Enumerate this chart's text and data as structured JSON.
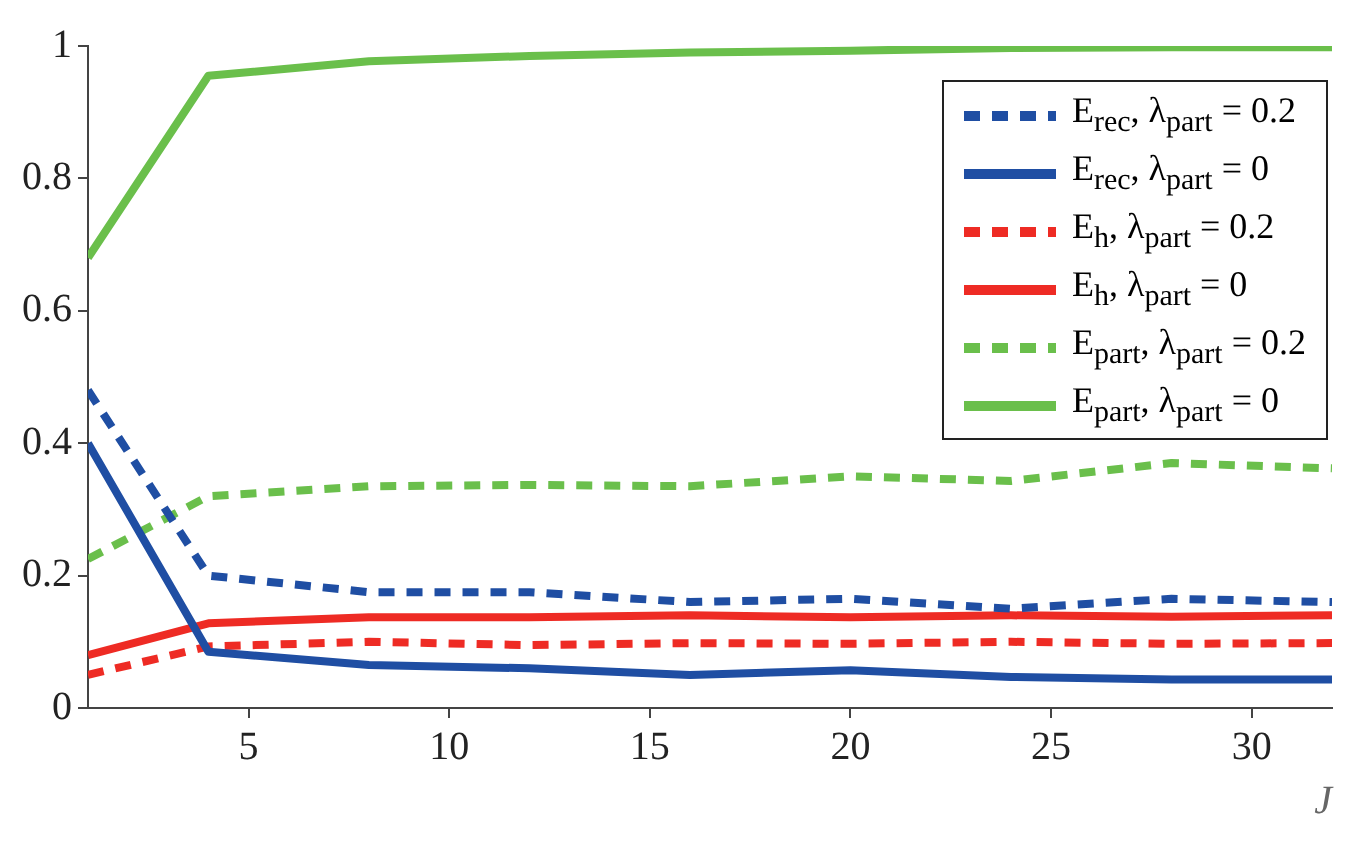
{
  "chart_data": {
    "type": "line",
    "xlabel": "J",
    "x": [
      1,
      4,
      8,
      12,
      16,
      20,
      24,
      28,
      32
    ],
    "xlim": [
      1,
      32
    ],
    "xticks": [
      5,
      10,
      15,
      20,
      25,
      30
    ],
    "ylim": [
      0,
      1
    ],
    "yticks": [
      0,
      0.2,
      0.4,
      0.6,
      0.8,
      1
    ],
    "grid": false,
    "legend": "top right",
    "marker": "none",
    "series": [
      {
        "name": "E$_{rec}$, λ$_{part}$ = 0.2",
        "color": "#1f4ea3",
        "line_style": "dashed",
        "values": [
          0.48,
          0.2,
          0.175,
          0.175,
          0.16,
          0.165,
          0.15,
          0.165,
          0.16
        ]
      },
      {
        "name": "E$_{rec}$, λ$_{part}$ = 0",
        "color": "#1f4ea3",
        "line_style": "solid",
        "values": [
          0.4,
          0.085,
          0.065,
          0.06,
          0.05,
          0.057,
          0.047,
          0.043,
          0.043
        ]
      },
      {
        "name": "E$_{h}$, λ$_{part}$ = 0.2",
        "color": "#ee2b24",
        "line_style": "dashed",
        "values": [
          0.05,
          0.093,
          0.1,
          0.095,
          0.098,
          0.097,
          0.1,
          0.097,
          0.098
        ]
      },
      {
        "name": "E$_{h}$, λ$_{part}$ = 0",
        "color": "#ee2b24",
        "line_style": "solid",
        "values": [
          0.08,
          0.128,
          0.137,
          0.137,
          0.14,
          0.137,
          0.14,
          0.138,
          0.14
        ]
      },
      {
        "name": "E$_{part}$, λ$_{part}$ = 0.2",
        "color": "#6abf4b",
        "line_style": "dashed",
        "values": [
          0.225,
          0.32,
          0.335,
          0.337,
          0.335,
          0.35,
          0.343,
          0.37,
          0.362
        ]
      },
      {
        "name": "E$_{part}$, λ$_{part}$ = 0",
        "color": "#6abf4b",
        "line_style": "solid",
        "values": [
          0.68,
          0.955,
          0.977,
          0.985,
          0.99,
          0.993,
          0.997,
          0.998,
          0.998
        ]
      }
    ]
  }
}
